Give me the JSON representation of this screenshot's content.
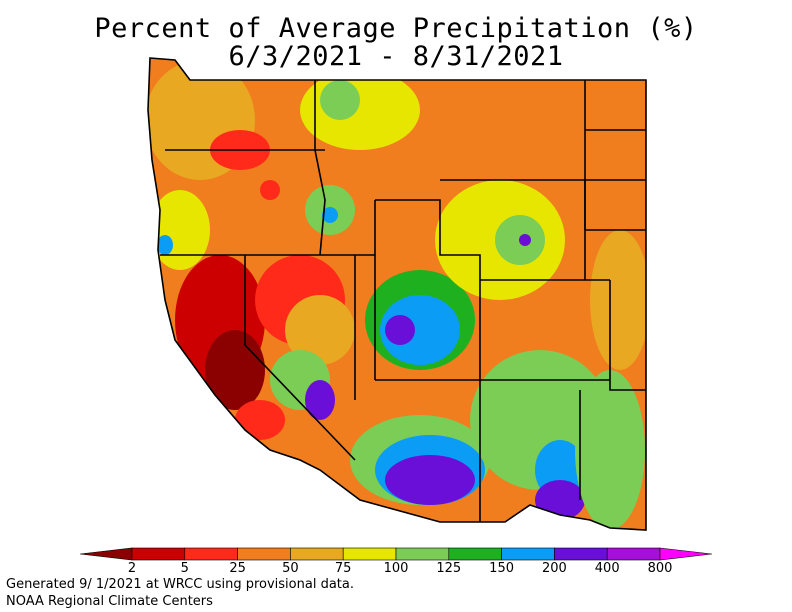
{
  "title": {
    "line1": "Percent of Average Precipitation (%)",
    "line2": "6/3/2021 - 8/31/2021"
  },
  "legend": {
    "tick_labels": [
      "2",
      "5",
      "25",
      "50",
      "75",
      "100",
      "125",
      "150",
      "200",
      "400",
      "800"
    ],
    "colors": [
      "#8b0000",
      "#cc0000",
      "#ff2a1a",
      "#f07d1e",
      "#e8a821",
      "#e6e600",
      "#7ccd55",
      "#1fb01f",
      "#0b9cf5",
      "#6a0fd8",
      "#a60fd8",
      "#ff00ff"
    ]
  },
  "footer": {
    "line1": "Generated 9/ 1/2021 at WRCC using provisional data.",
    "line2": "NOAA Regional Climate Centers"
  }
}
